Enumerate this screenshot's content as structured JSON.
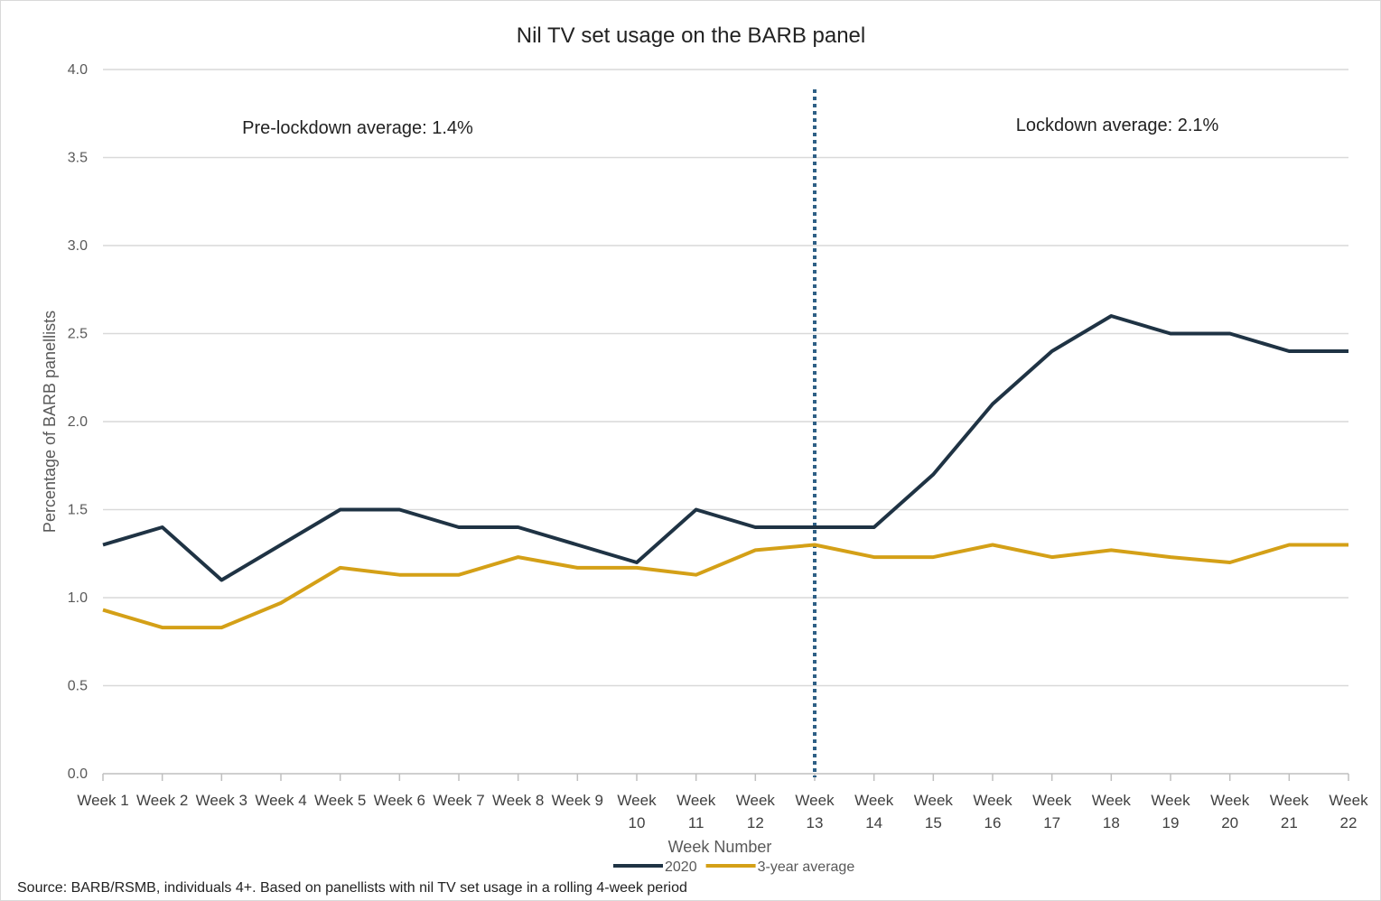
{
  "chart_data": {
    "type": "line",
    "title": "Nil TV set usage on the BARB panel",
    "xlabel": "Week Number",
    "ylabel": "Percentage of BARB panellists",
    "ylim": [
      0,
      4
    ],
    "yticks": [
      "0.0",
      "0.5",
      "1.0",
      "1.5",
      "2.0",
      "2.5",
      "3.0",
      "3.5",
      "4.0"
    ],
    "grid": true,
    "legend_position": "bottom",
    "categories": [
      [
        "Week 1"
      ],
      [
        "Week 2"
      ],
      [
        "Week 3"
      ],
      [
        "Week 4"
      ],
      [
        "Week 5"
      ],
      [
        "Week 6"
      ],
      [
        "Week 7"
      ],
      [
        "Week 8"
      ],
      [
        "Week 9"
      ],
      [
        "Week",
        "10"
      ],
      [
        "Week",
        "11"
      ],
      [
        "Week",
        "12"
      ],
      [
        "Week",
        "13"
      ],
      [
        "Week",
        "14"
      ],
      [
        "Week",
        "15"
      ],
      [
        "Week",
        "16"
      ],
      [
        "Week",
        "17"
      ],
      [
        "Week",
        "18"
      ],
      [
        "Week",
        "19"
      ],
      [
        "Week",
        "20"
      ],
      [
        "Week",
        "21"
      ],
      [
        "Week",
        "22"
      ]
    ],
    "series": [
      {
        "name": "2020",
        "color": "#1f3344",
        "values": [
          1.3,
          1.4,
          1.1,
          1.3,
          1.5,
          1.5,
          1.4,
          1.4,
          1.3,
          1.2,
          1.5,
          1.4,
          1.4,
          1.4,
          1.7,
          2.1,
          2.4,
          2.6,
          2.5,
          2.5,
          2.4,
          2.4
        ]
      },
      {
        "name": "3-year average",
        "color": "#d4a017",
        "values": [
          0.93,
          0.83,
          0.83,
          0.97,
          1.17,
          1.13,
          1.13,
          1.23,
          1.17,
          1.17,
          1.13,
          1.27,
          1.3,
          1.23,
          1.23,
          1.3,
          1.23,
          1.27,
          1.23,
          1.2,
          1.3,
          1.3
        ]
      }
    ],
    "reference_line": {
      "x_category": "Week 13",
      "style": "dotted",
      "color": "#2e5f85"
    },
    "annotations": [
      "Pre-lockdown average: 1.4%",
      "Lockdown average: 2.1%"
    ],
    "source": "Source: BARB/RSMB, individuals 4+. Based on panellists with nil TV set usage in a rolling 4-week period"
  }
}
